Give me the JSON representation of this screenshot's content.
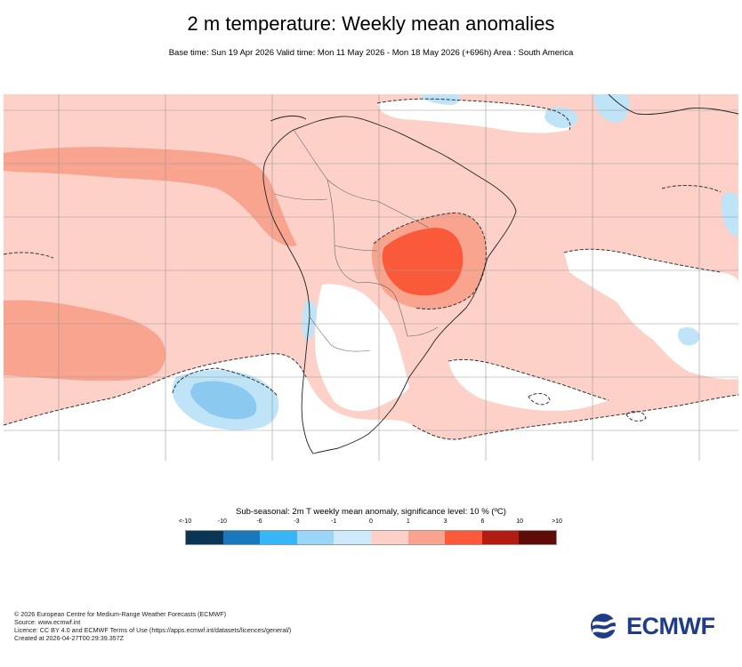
{
  "header": {
    "title": "2 m temperature: Weekly mean anomalies",
    "subtitle": "Base time: Sun 19 Apr 2026 Valid time: Mon 11 May 2026 - Mon 18 May 2026 (+696h) Area : South America"
  },
  "map": {
    "region": "South America",
    "dominant_category": "0 to 1",
    "colors": {
      "background": "#fdd1c8",
      "neutral": "#ffffff",
      "ocean_warm": "#f8a48f",
      "core_warm": "#fb5a3a",
      "cool_light": "#bfe3f7",
      "cool": "#8cc9f0",
      "land_border": "#555555",
      "coast": "#222222",
      "grid": "#999999"
    }
  },
  "legend": {
    "title": "Sub-seasonal: 2m T weekly mean anomaly, significance level: 10 % (ºC)",
    "ticks": [
      "<-10",
      "-10",
      "-6",
      "-3",
      "-1",
      "0",
      "1",
      "3",
      "6",
      "10",
      ">10"
    ],
    "colors": [
      "#0b3555",
      "#1a78bd",
      "#36b6f7",
      "#9ad6f7",
      "#cfeafa",
      "#fdd1c8",
      "#f8a48f",
      "#fb5a3a",
      "#b31c10",
      "#5f0c08"
    ]
  },
  "credits": {
    "line1": "© 2026 European Centre for Medium-Range Weather Forecasts (ECMWF)",
    "line2": "Source: www.ecmwf.int",
    "line3": "Licence: CC BY 4.0 and ECMWF Terms of Use (https://apps.ecmwf.int/datasets/licences/general/)",
    "line4": "Created at 2026-04-27T00:29:39.357Z"
  },
  "logo": {
    "text": "ECMWF",
    "color": "#1f3c88"
  }
}
